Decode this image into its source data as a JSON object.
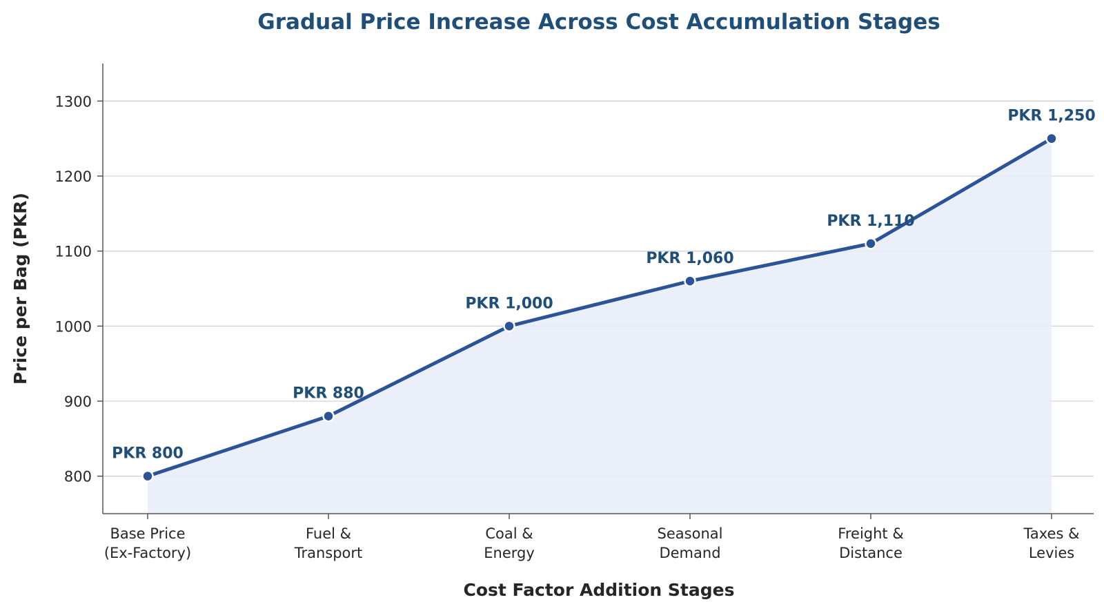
{
  "chart_data": {
    "type": "line",
    "title": "Gradual Price Increase Across Cost Accumulation Stages",
    "xlabel": "Cost Factor Addition Stages",
    "ylabel": "Price per Bag (PKR)",
    "categories": [
      [
        "Base Price",
        "(Ex-Factory)"
      ],
      [
        "Fuel &",
        "Transport"
      ],
      [
        "Coal &",
        "Energy"
      ],
      [
        "Seasonal",
        "Demand"
      ],
      [
        "Freight &",
        "Distance"
      ],
      [
        "Taxes &",
        "Levies"
      ]
    ],
    "values": [
      800,
      880,
      1000,
      1060,
      1110,
      1250
    ],
    "data_labels": [
      "PKR 800",
      "PKR 880",
      "PKR 1,000",
      "PKR 1,060",
      "PKR 1,110",
      "PKR 1,250"
    ],
    "ylim": [
      750,
      1350
    ],
    "yticks": [
      800,
      900,
      1000,
      1100,
      1200,
      1300
    ],
    "grid": "horizontal",
    "colors": {
      "line": "#2b5397",
      "marker": "#2b5397",
      "fill": "#e8ecf8",
      "title": "#1f4e79",
      "data_label": "#1f4e79"
    }
  }
}
